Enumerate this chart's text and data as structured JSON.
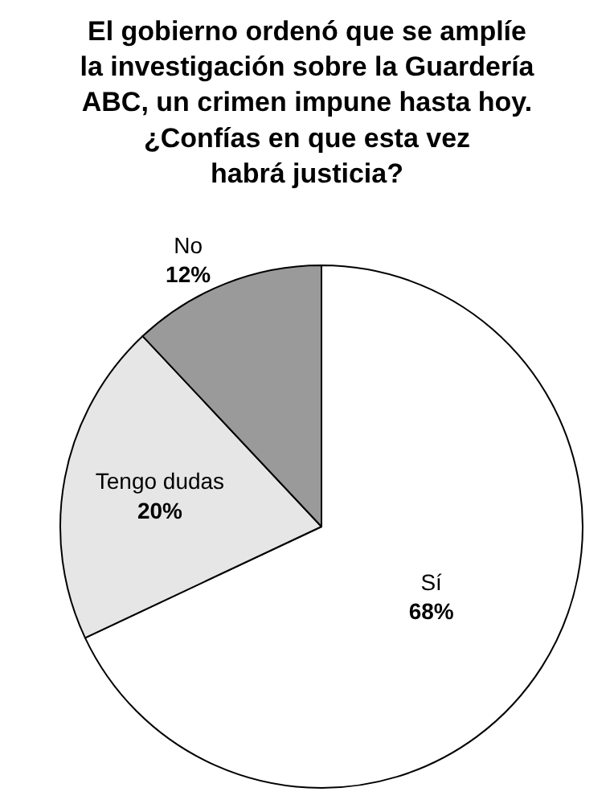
{
  "chart_data": {
    "type": "pie",
    "title": "El gobierno ordenó que se amplíe\nla investigación sobre la Guardería\nABC, un crimen impune hasta hoy.\n¿Confías en que esta vez\nhabrá justicia?",
    "categories": [
      "Sí",
      "Tengo dudas",
      "No"
    ],
    "values": [
      68,
      20,
      12
    ],
    "colors": [
      "#ffffff",
      "#e6e6e6",
      "#9a9a9a"
    ],
    "value_labels": [
      "68%",
      "20%",
      "12%"
    ]
  }
}
